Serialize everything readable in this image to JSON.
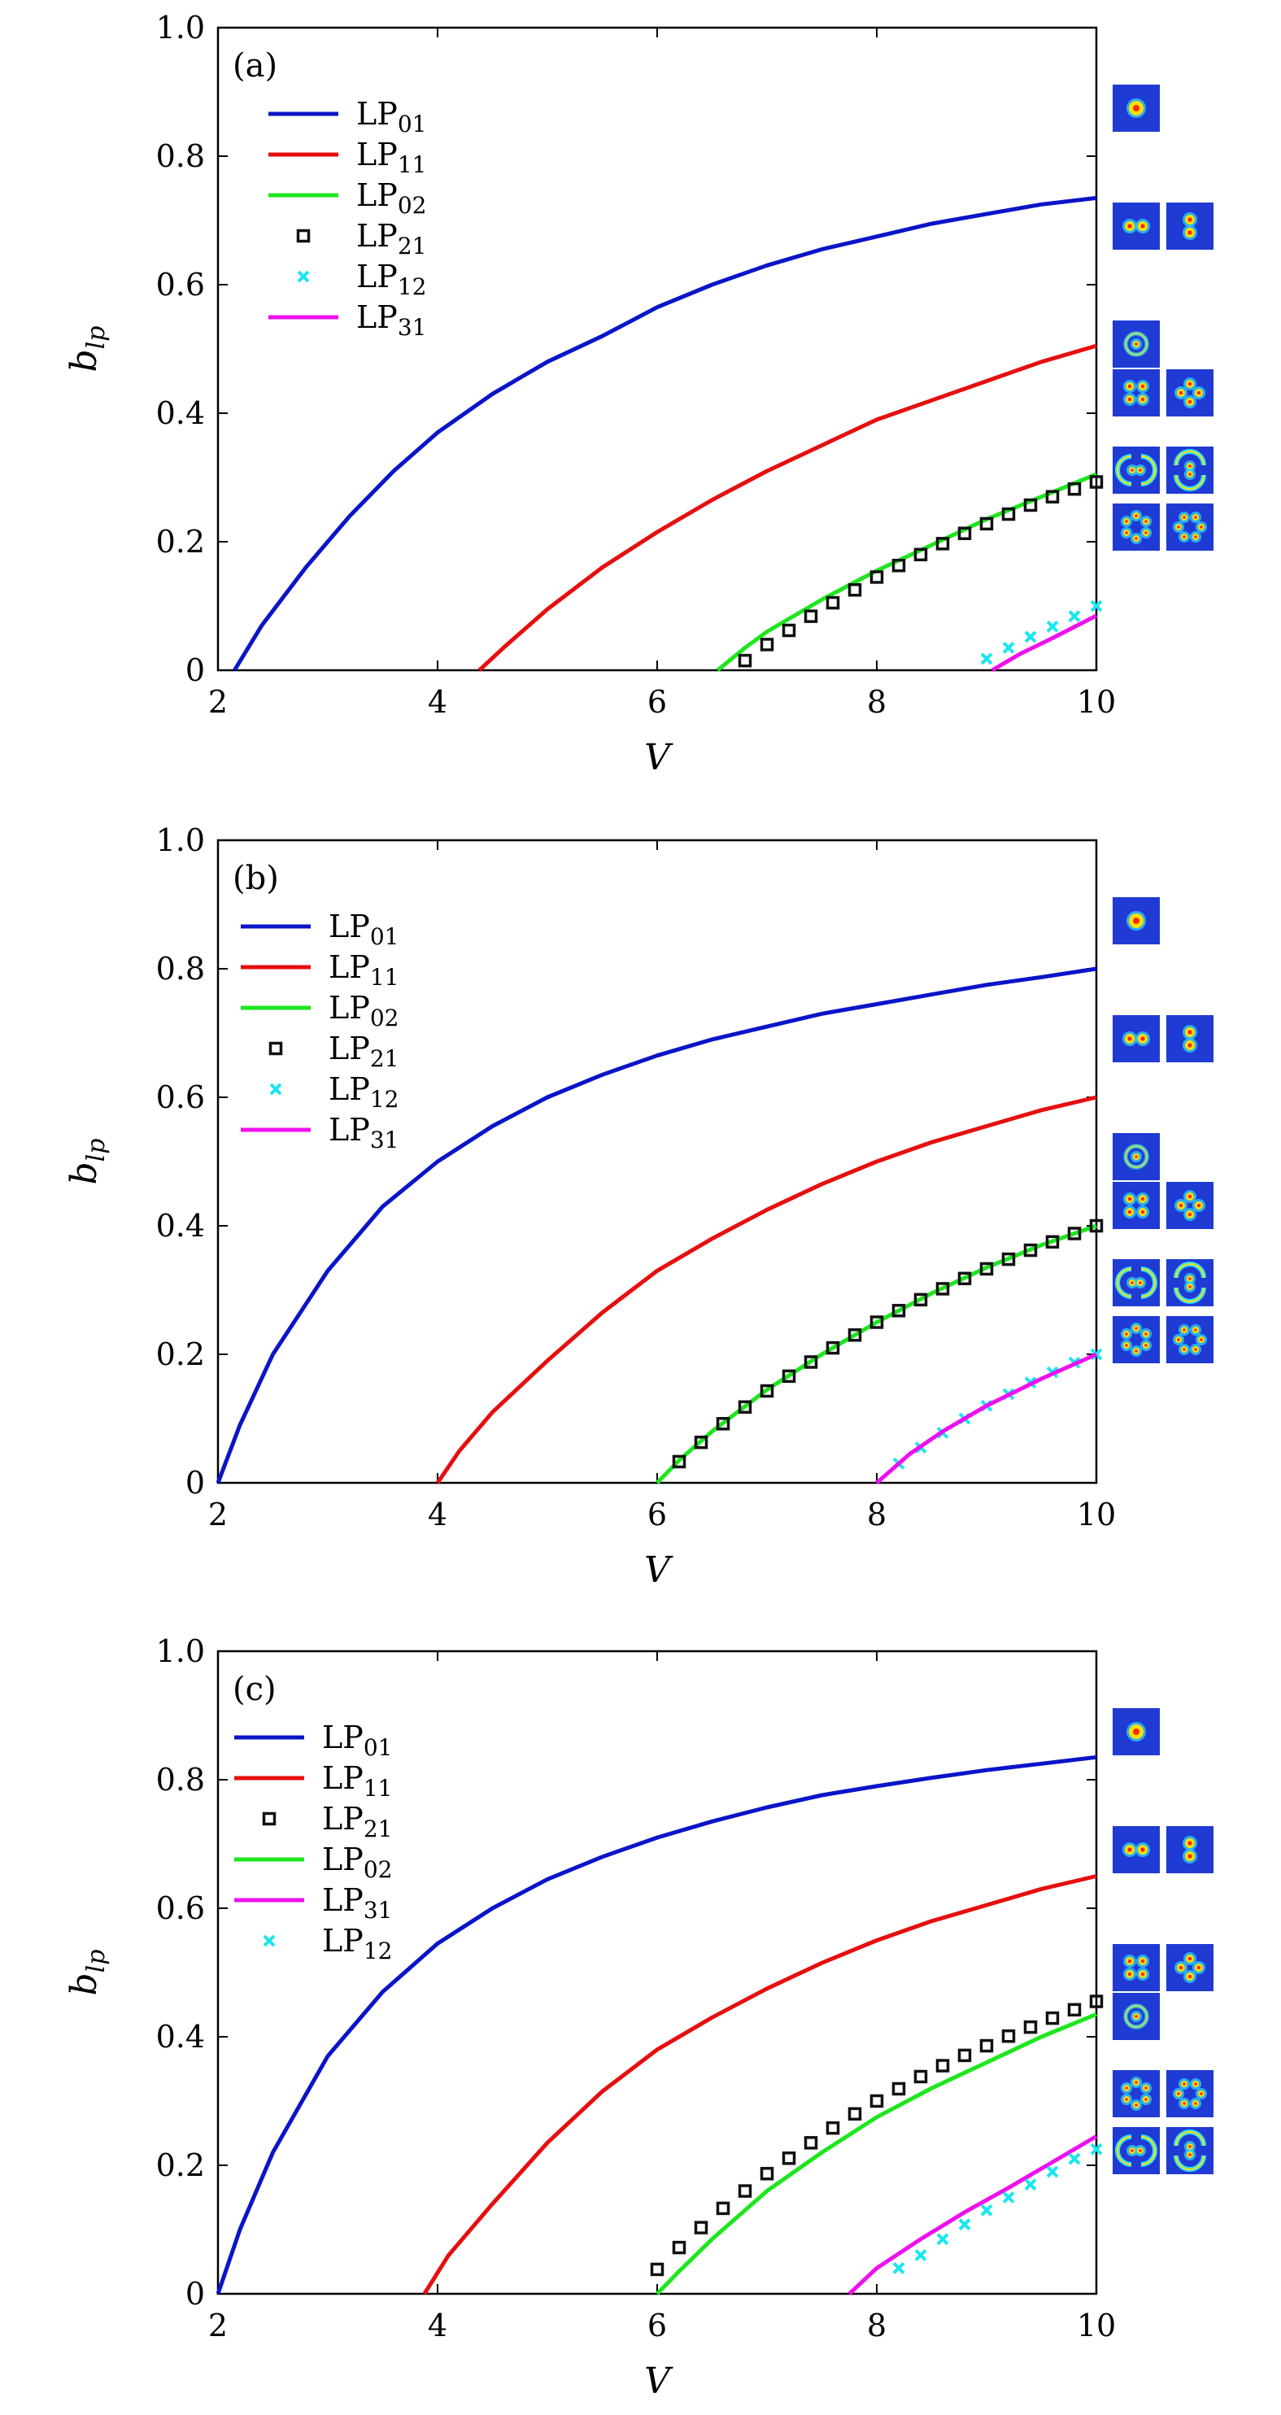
{
  "chart_data": [
    {
      "type": "line",
      "panel_label": "(a)",
      "xlabel": "V",
      "ylabel": "b",
      "ylabel_sub": "lp",
      "xlim": [
        2,
        10
      ],
      "ylim": [
        0,
        1.0
      ],
      "xticks": [
        "2",
        "4",
        "6",
        "8",
        "10"
      ],
      "yticks": [
        "0",
        "0.2",
        "0.4",
        "0.6",
        "0.8",
        "1.0"
      ],
      "legend_position": "top-left",
      "series": [
        {
          "name": "LP",
          "sub": "01",
          "style": "line",
          "color": "#0a14c8",
          "x": [
            2.15,
            2.4,
            2.8,
            3.2,
            3.6,
            4.0,
            4.5,
            5.0,
            5.5,
            6.0,
            6.5,
            7.0,
            7.5,
            8.0,
            8.5,
            9.0,
            9.5,
            10.0
          ],
          "y": [
            0.0,
            0.07,
            0.16,
            0.24,
            0.31,
            0.37,
            0.43,
            0.48,
            0.52,
            0.565,
            0.6,
            0.63,
            0.655,
            0.675,
            0.695,
            0.71,
            0.725,
            0.735
          ]
        },
        {
          "name": "LP",
          "sub": "11",
          "style": "line",
          "color": "#e60f0f",
          "x": [
            4.38,
            4.6,
            5.0,
            5.5,
            6.0,
            6.5,
            7.0,
            7.5,
            8.0,
            8.5,
            9.0,
            9.5,
            10.0
          ],
          "y": [
            0.0,
            0.035,
            0.095,
            0.16,
            0.215,
            0.265,
            0.31,
            0.35,
            0.39,
            0.42,
            0.45,
            0.48,
            0.505
          ]
        },
        {
          "name": "LP",
          "sub": "02",
          "style": "line",
          "color": "#1ee61e",
          "x": [
            6.55,
            6.8,
            7.0,
            7.5,
            8.0,
            8.5,
            9.0,
            9.5,
            10.0
          ],
          "y": [
            0.0,
            0.035,
            0.06,
            0.11,
            0.155,
            0.195,
            0.235,
            0.27,
            0.305
          ]
        },
        {
          "name": "LP",
          "sub": "21",
          "style": "square",
          "color": "#111111",
          "x": [
            6.8,
            7.0,
            7.2,
            7.4,
            7.6,
            7.8,
            8.0,
            8.2,
            8.4,
            8.6,
            8.8,
            9.0,
            9.2,
            9.4,
            9.6,
            9.8,
            10.0
          ],
          "y": [
            0.015,
            0.04,
            0.062,
            0.084,
            0.105,
            0.125,
            0.145,
            0.163,
            0.18,
            0.197,
            0.213,
            0.228,
            0.243,
            0.257,
            0.27,
            0.282,
            0.293
          ]
        },
        {
          "name": "LP",
          "sub": "12",
          "style": "cross",
          "color": "#19e6f0",
          "x": [
            9.0,
            9.2,
            9.4,
            9.6,
            9.8,
            10.0
          ],
          "y": [
            0.018,
            0.035,
            0.052,
            0.068,
            0.084,
            0.1
          ]
        },
        {
          "name": "LP",
          "sub": "31",
          "style": "line",
          "color": "#ee10ee",
          "x": [
            9.05,
            9.3,
            9.6,
            10.0
          ],
          "y": [
            0.0,
            0.025,
            0.05,
            0.085
          ]
        }
      ],
      "mode_images": [
        {
          "row": 0,
          "modes": [
            "LP01"
          ]
        },
        {
          "row": 1,
          "modes": [
            "LP11a",
            "LP11b"
          ]
        },
        {
          "row": 2,
          "modes": [
            "LP02"
          ]
        },
        {
          "row": 3,
          "modes": [
            "LP21a",
            "LP21b"
          ]
        },
        {
          "row": 4,
          "modes": [
            "LP12a",
            "LP12b"
          ]
        },
        {
          "row": 5,
          "modes": [
            "LP31a",
            "LP31b"
          ]
        }
      ]
    },
    {
      "type": "line",
      "panel_label": "(b)",
      "xlabel": "V",
      "ylabel": "b",
      "ylabel_sub": "lp",
      "xlim": [
        2,
        10
      ],
      "ylim": [
        0,
        1.0
      ],
      "xticks": [
        "2",
        "4",
        "6",
        "8",
        "10"
      ],
      "yticks": [
        "0",
        "0.2",
        "0.4",
        "0.6",
        "0.8",
        "1.0"
      ],
      "legend_position": "top-left",
      "series": [
        {
          "name": "LP",
          "sub": "01",
          "style": "line",
          "color": "#0a14c8",
          "x": [
            2.0,
            2.2,
            2.5,
            3.0,
            3.5,
            4.0,
            4.5,
            5.0,
            5.5,
            6.0,
            6.5,
            7.0,
            7.5,
            8.0,
            8.5,
            9.0,
            9.5,
            10.0
          ],
          "y": [
            0.0,
            0.09,
            0.2,
            0.33,
            0.43,
            0.5,
            0.555,
            0.6,
            0.635,
            0.665,
            0.69,
            0.71,
            0.73,
            0.745,
            0.76,
            0.775,
            0.787,
            0.8
          ]
        },
        {
          "name": "LP",
          "sub": "11",
          "style": "line",
          "color": "#e60f0f",
          "x": [
            4.0,
            4.2,
            4.5,
            5.0,
            5.5,
            6.0,
            6.5,
            7.0,
            7.5,
            8.0,
            8.5,
            9.0,
            9.5,
            10.0
          ],
          "y": [
            0.0,
            0.05,
            0.11,
            0.19,
            0.265,
            0.33,
            0.38,
            0.425,
            0.465,
            0.5,
            0.53,
            0.555,
            0.58,
            0.6
          ]
        },
        {
          "name": "LP",
          "sub": "02",
          "style": "line",
          "color": "#1ee61e",
          "x": [
            6.0,
            6.2,
            6.5,
            7.0,
            7.5,
            8.0,
            8.5,
            9.0,
            9.5,
            10.0
          ],
          "y": [
            0.0,
            0.035,
            0.08,
            0.145,
            0.2,
            0.25,
            0.295,
            0.335,
            0.37,
            0.4
          ]
        },
        {
          "name": "LP",
          "sub": "21",
          "style": "square",
          "color": "#111111",
          "x": [
            6.2,
            6.4,
            6.6,
            6.8,
            7.0,
            7.2,
            7.4,
            7.6,
            7.8,
            8.0,
            8.2,
            8.4,
            8.6,
            8.8,
            9.0,
            9.2,
            9.4,
            9.6,
            9.8,
            10.0
          ],
          "y": [
            0.033,
            0.063,
            0.092,
            0.118,
            0.143,
            0.166,
            0.188,
            0.21,
            0.23,
            0.25,
            0.268,
            0.285,
            0.302,
            0.318,
            0.333,
            0.348,
            0.362,
            0.375,
            0.388,
            0.4
          ]
        },
        {
          "name": "LP",
          "sub": "12",
          "style": "cross",
          "color": "#19e6f0",
          "x": [
            8.2,
            8.4,
            8.6,
            8.8,
            9.0,
            9.2,
            9.4,
            9.6,
            9.8,
            10.0
          ],
          "y": [
            0.03,
            0.055,
            0.078,
            0.1,
            0.12,
            0.138,
            0.156,
            0.172,
            0.187,
            0.2
          ]
        },
        {
          "name": "LP",
          "sub": "31",
          "style": "line",
          "color": "#ee10ee",
          "x": [
            8.0,
            8.3,
            8.6,
            9.0,
            9.5,
            10.0
          ],
          "y": [
            0.0,
            0.045,
            0.08,
            0.12,
            0.162,
            0.2
          ]
        }
      ],
      "mode_images": [
        {
          "row": 0,
          "modes": [
            "LP01"
          ]
        },
        {
          "row": 1,
          "modes": [
            "LP11a",
            "LP11b"
          ]
        },
        {
          "row": 2,
          "modes": [
            "LP02"
          ]
        },
        {
          "row": 3,
          "modes": [
            "LP21a",
            "LP21b"
          ]
        },
        {
          "row": 4,
          "modes": [
            "LP12a",
            "LP12b"
          ]
        },
        {
          "row": 5,
          "modes": [
            "LP31a",
            "LP31b"
          ]
        }
      ]
    },
    {
      "type": "line",
      "panel_label": "(c)",
      "xlabel": "V",
      "ylabel": "b",
      "ylabel_sub": "lp",
      "xlim": [
        2,
        10
      ],
      "ylim": [
        0,
        1.0
      ],
      "xticks": [
        "2",
        "4",
        "6",
        "8",
        "10"
      ],
      "yticks": [
        "0",
        "0.2",
        "0.4",
        "0.6",
        "0.8",
        "1.0"
      ],
      "legend_position": "top-left",
      "series": [
        {
          "name": "LP",
          "sub": "01",
          "style": "line",
          "color": "#0a14c8",
          "x": [
            2.0,
            2.2,
            2.5,
            3.0,
            3.5,
            4.0,
            4.5,
            5.0,
            5.5,
            6.0,
            6.5,
            7.0,
            7.5,
            8.0,
            8.5,
            9.0,
            9.5,
            10.0
          ],
          "y": [
            0.0,
            0.1,
            0.22,
            0.37,
            0.47,
            0.545,
            0.6,
            0.645,
            0.68,
            0.71,
            0.735,
            0.757,
            0.776,
            0.79,
            0.803,
            0.815,
            0.825,
            0.835
          ]
        },
        {
          "name": "LP",
          "sub": "11",
          "style": "line",
          "color": "#e60f0f",
          "x": [
            3.88,
            4.1,
            4.5,
            5.0,
            5.5,
            6.0,
            6.5,
            7.0,
            7.5,
            8.0,
            8.5,
            9.0,
            9.5,
            10.0
          ],
          "y": [
            0.0,
            0.06,
            0.14,
            0.235,
            0.315,
            0.38,
            0.43,
            0.475,
            0.515,
            0.55,
            0.58,
            0.605,
            0.63,
            0.65
          ]
        },
        {
          "name": "LP",
          "sub": "21",
          "style": "square",
          "color": "#111111",
          "x": [
            6.0,
            6.2,
            6.4,
            6.6,
            6.8,
            7.0,
            7.2,
            7.4,
            7.6,
            7.8,
            8.0,
            8.2,
            8.4,
            8.6,
            8.8,
            9.0,
            9.2,
            9.4,
            9.6,
            9.8,
            10.0
          ],
          "y": [
            0.038,
            0.072,
            0.103,
            0.133,
            0.16,
            0.187,
            0.211,
            0.235,
            0.258,
            0.28,
            0.3,
            0.319,
            0.338,
            0.355,
            0.371,
            0.386,
            0.401,
            0.415,
            0.429,
            0.442,
            0.455
          ]
        },
        {
          "name": "LP",
          "sub": "02",
          "style": "line",
          "color": "#1ee61e",
          "x": [
            6.0,
            6.2,
            6.5,
            7.0,
            7.5,
            8.0,
            8.5,
            9.0,
            9.5,
            10.0
          ],
          "y": [
            0.0,
            0.035,
            0.085,
            0.16,
            0.22,
            0.275,
            0.32,
            0.36,
            0.4,
            0.435
          ]
        },
        {
          "name": "LP",
          "sub": "31",
          "style": "line",
          "color": "#ee10ee",
          "x": [
            7.75,
            8.0,
            8.4,
            8.8,
            9.2,
            9.6,
            10.0
          ],
          "y": [
            0.0,
            0.04,
            0.085,
            0.127,
            0.165,
            0.205,
            0.245
          ]
        },
        {
          "name": "LP",
          "sub": "12",
          "style": "cross",
          "color": "#19e6f0",
          "x": [
            8.2,
            8.4,
            8.6,
            8.8,
            9.0,
            9.2,
            9.4,
            9.6,
            9.8,
            10.0
          ],
          "y": [
            0.04,
            0.06,
            0.085,
            0.108,
            0.13,
            0.15,
            0.17,
            0.19,
            0.21,
            0.225
          ]
        }
      ],
      "mode_images": [
        {
          "row": 0,
          "modes": [
            "LP01"
          ]
        },
        {
          "row": 1,
          "modes": [
            "LP11a",
            "LP11b"
          ]
        },
        {
          "row": 2,
          "modes": [
            "LP21a",
            "LP21b"
          ]
        },
        {
          "row": 3,
          "modes": [
            "LP02"
          ]
        },
        {
          "row": 4,
          "modes": [
            "LP31a",
            "LP31b"
          ]
        },
        {
          "row": 5,
          "modes": [
            "LP12a",
            "LP12b"
          ]
        }
      ]
    }
  ]
}
